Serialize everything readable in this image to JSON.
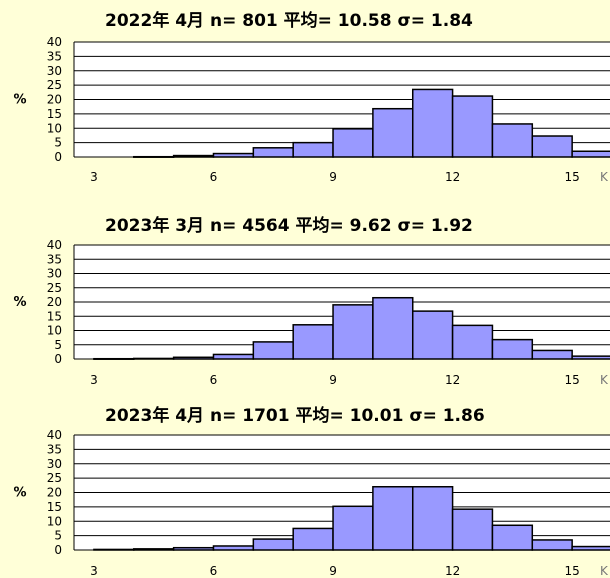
{
  "colors": {
    "background": "#FFFFD8",
    "bar_fill": "#9999FF",
    "bar_stroke": "#000000",
    "grid": "#000000"
  },
  "chart_data": [
    {
      "type": "bar",
      "title": "2022年 4月  n= 801 平均= 10.58 σ= 1.84",
      "ylabel": "%",
      "xlabel": "K",
      "x_ticks": [
        3,
        6,
        9,
        12,
        15
      ],
      "y_ticks": [
        0,
        5,
        10,
        15,
        20,
        25,
        30,
        35,
        40
      ],
      "ylim": [
        0,
        40
      ],
      "xlim": [
        2.5,
        16
      ],
      "bin_width": 1,
      "grid": true,
      "bin_starts": [
        4,
        5,
        6,
        7,
        8,
        9,
        10,
        11,
        12,
        13,
        14,
        15
      ],
      "values": [
        0.1,
        0.5,
        1.2,
        3.2,
        5.0,
        9.8,
        16.8,
        23.5,
        21.2,
        11.5,
        7.3,
        2.0
      ]
    },
    {
      "type": "bar",
      "title": "2023年 3月  n= 4564 平均= 9.62  σ= 1.92",
      "ylabel": "%",
      "xlabel": "K",
      "x_ticks": [
        3,
        6,
        9,
        12,
        15
      ],
      "y_ticks": [
        0,
        5,
        10,
        15,
        20,
        25,
        30,
        35,
        40
      ],
      "ylim": [
        0,
        40
      ],
      "xlim": [
        2.5,
        16
      ],
      "bin_width": 1,
      "grid": true,
      "bin_starts": [
        3,
        4,
        5,
        6,
        7,
        8,
        9,
        10,
        11,
        12,
        13,
        14,
        15
      ],
      "values": [
        0.1,
        0.2,
        0.6,
        1.6,
        6.0,
        12.0,
        19.0,
        21.5,
        16.8,
        11.8,
        6.8,
        3.0,
        1.0
      ]
    },
    {
      "type": "bar",
      "title": "2023年  4月  n= 1701 平均= 10.01 σ= 1.86",
      "ylabel": "%",
      "xlabel": "K",
      "x_ticks": [
        3,
        6,
        9,
        12,
        15
      ],
      "y_ticks": [
        0,
        5,
        10,
        15,
        20,
        25,
        30,
        35,
        40
      ],
      "ylim": [
        0,
        40
      ],
      "xlim": [
        2.5,
        16
      ],
      "bin_width": 1,
      "grid": true,
      "bin_starts": [
        3,
        4,
        5,
        6,
        7,
        8,
        9,
        10,
        11,
        12,
        13,
        14,
        15
      ],
      "values": [
        0.2,
        0.4,
        0.8,
        1.4,
        3.8,
        7.5,
        15.2,
        22.0,
        22.0,
        14.2,
        8.6,
        3.5,
        1.2
      ]
    }
  ]
}
